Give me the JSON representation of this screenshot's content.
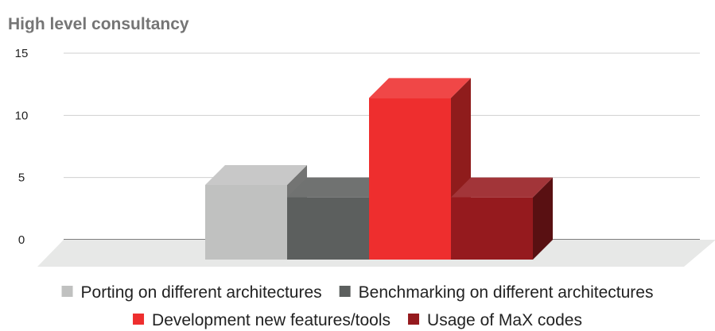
{
  "chart_data": {
    "type": "bar",
    "title": "High level consultancy",
    "xlabel": "",
    "ylabel": "",
    "ylim": [
      0,
      15
    ],
    "yticks": [
      0,
      5,
      10,
      15
    ],
    "grid": true,
    "three_d": true,
    "legend_position": "bottom",
    "categories": [
      ""
    ],
    "series": [
      {
        "name": "Porting on different architectures",
        "values": [
          6
        ],
        "color": "#c0c1c0"
      },
      {
        "name": "Benchmarking on different architectures",
        "values": [
          5
        ],
        "color": "#5c5f5e"
      },
      {
        "name": "Development new features/tools",
        "values": [
          13
        ],
        "color": "#ee2e2e"
      },
      {
        "name": "Usage of MaX codes",
        "values": [
          5
        ],
        "color": "#951a1e"
      }
    ]
  }
}
